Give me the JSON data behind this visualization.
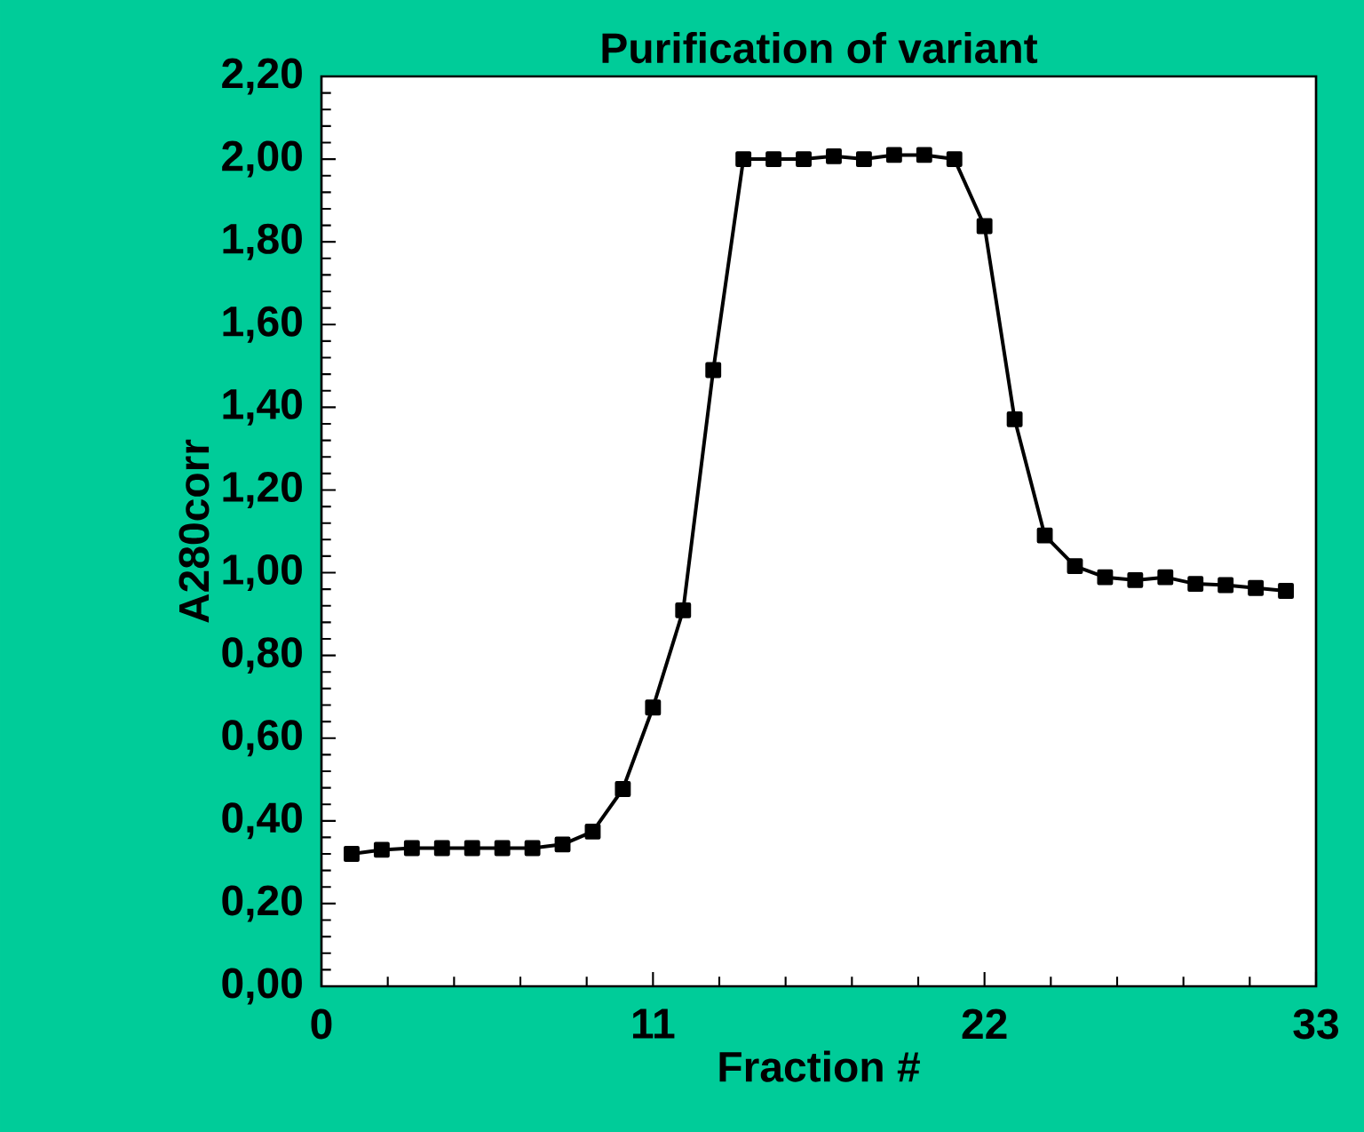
{
  "chart_data": {
    "type": "line",
    "title": "Purification of variant",
    "xlabel": "Fraction #",
    "ylabel": "A280corr",
    "x": [
      1,
      2,
      3,
      4,
      5,
      6,
      7,
      8,
      9,
      10,
      11,
      12,
      13,
      14,
      15,
      16,
      17,
      18,
      19,
      20,
      21,
      22,
      23,
      24,
      25,
      26,
      27,
      28,
      29,
      30,
      31,
      32
    ],
    "series": [
      {
        "color": "#000000",
        "values": [
          0.32,
          0.33,
          0.334,
          0.334,
          0.334,
          0.334,
          0.334,
          0.343,
          0.374,
          0.477,
          0.674,
          0.909,
          1.49,
          2.0,
          2.0,
          2.0,
          2.007,
          2.0,
          2.01,
          2.01,
          2.0,
          1.838,
          1.371,
          1.09,
          1.016,
          0.989,
          0.982,
          0.989,
          0.973,
          0.97,
          0.963,
          0.956
        ]
      }
    ],
    "marker": "square",
    "line_style": "solid",
    "xlim": [
      0,
      33
    ],
    "xticks": [
      0,
      11,
      22,
      33
    ],
    "ylim": [
      0,
      2.2
    ],
    "yticks": [
      {
        "value": 0,
        "label": "0,00"
      },
      {
        "value": 0.2,
        "label": "0,20"
      },
      {
        "value": 0.4,
        "label": "0,40"
      },
      {
        "value": 0.6,
        "label": "0,60"
      },
      {
        "value": 0.8,
        "label": "0,80"
      },
      {
        "value": 1.0,
        "label": "1,00"
      },
      {
        "value": 1.2,
        "label": "1,20"
      },
      {
        "value": 1.4,
        "label": "1,40"
      },
      {
        "value": 1.6,
        "label": "1,60"
      },
      {
        "value": 1.8,
        "label": "1,80"
      },
      {
        "value": 2.0,
        "label": "2,00"
      },
      {
        "value": 2.2,
        "label": "2,20"
      }
    ]
  }
}
